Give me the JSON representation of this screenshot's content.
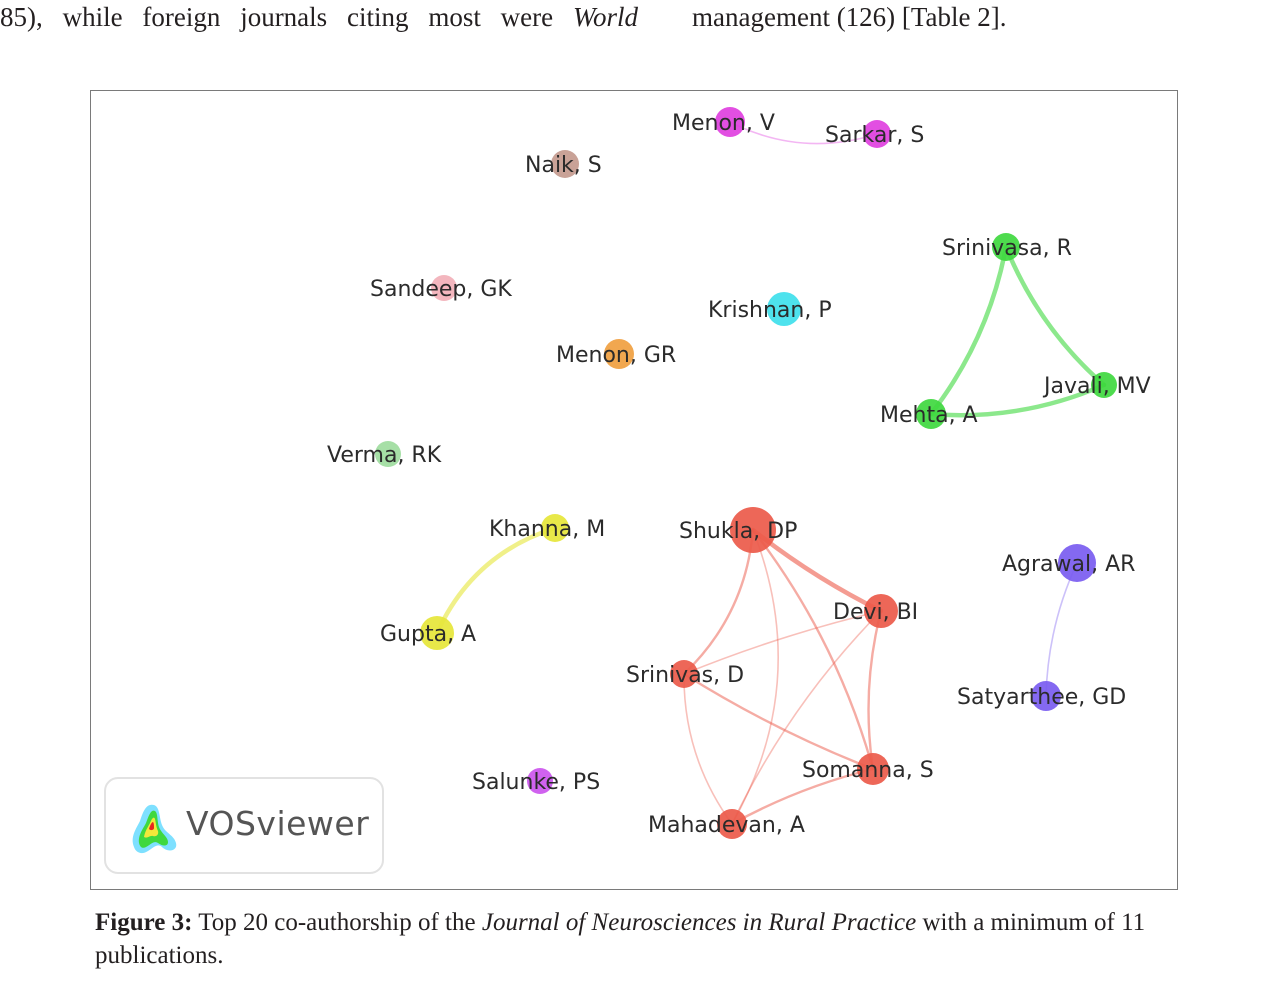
{
  "prose": {
    "left_line": "85), while foreign journals citing most were",
    "left_italic": "World",
    "right_line": "management (126) [Table 2]."
  },
  "figure": {
    "watermark": "VOSviewer",
    "caption": {
      "label": "Figure 3:",
      "text_before": " Top 20 co-authorship of the ",
      "journal": "Journal of Neurosciences in Rural Practice",
      "text_after": " with a minimum of 11 publications."
    }
  },
  "network": {
    "colors": {
      "magenta": "#e040e0",
      "brown": "#c49a8e",
      "green": "#3fd83f",
      "pink": "#f2b0b8",
      "cyan": "#3fe0ec",
      "orange": "#f0a040",
      "lightgreen": "#9edc9e",
      "yellow": "#e6e63a",
      "red": "#ec5a4a",
      "blue": "#7a5cf0",
      "violet": "#cc55ee"
    },
    "nodes": [
      {
        "id": "menon-v",
        "label": "Menon, V",
        "color": "magenta"
      },
      {
        "id": "sarkar-s",
        "label": "Sarkar, S",
        "color": "magenta"
      },
      {
        "id": "naik-s",
        "label": "Naik, S",
        "color": "brown"
      },
      {
        "id": "srinivasa-r",
        "label": "Srinivasa, R",
        "color": "green"
      },
      {
        "id": "sandeep-gk",
        "label": "Sandeep, GK",
        "color": "pink"
      },
      {
        "id": "krishnan-p",
        "label": "Krishnan, P",
        "color": "cyan"
      },
      {
        "id": "menon-gr",
        "label": "Menon, GR",
        "color": "orange"
      },
      {
        "id": "javali-mv",
        "label": "Javali, MV",
        "color": "green"
      },
      {
        "id": "mehta-a",
        "label": "Mehta, A",
        "color": "green"
      },
      {
        "id": "verma-rk",
        "label": "Verma, RK",
        "color": "lightgreen"
      },
      {
        "id": "khanna-m",
        "label": "Khanna, M",
        "color": "yellow"
      },
      {
        "id": "shukla-dp",
        "label": "Shukla, DP",
        "color": "red"
      },
      {
        "id": "agrawal-ar",
        "label": "Agrawal, AR",
        "color": "blue"
      },
      {
        "id": "devi-bi",
        "label": "Devi, BI",
        "color": "red"
      },
      {
        "id": "gupta-a",
        "label": "Gupta, A",
        "color": "yellow"
      },
      {
        "id": "srinivas-d",
        "label": "Srinivas, D",
        "color": "red"
      },
      {
        "id": "satyarthee-gd",
        "label": "Satyarthee, GD",
        "color": "blue"
      },
      {
        "id": "somanna-s",
        "label": "Somanna, S",
        "color": "red"
      },
      {
        "id": "salunke-ps",
        "label": "Salunke, PS",
        "color": "violet"
      },
      {
        "id": "mahadevan-a",
        "label": "Mahadevan, A",
        "color": "red"
      }
    ],
    "edges": [
      {
        "from": "menon-v",
        "to": "sarkar-s",
        "strength": "weak"
      },
      {
        "from": "srinivasa-r",
        "to": "javali-mv",
        "strength": "strong"
      },
      {
        "from": "srinivasa-r",
        "to": "mehta-a",
        "strength": "strong"
      },
      {
        "from": "mehta-a",
        "to": "javali-mv",
        "strength": "strong"
      },
      {
        "from": "khanna-m",
        "to": "gupta-a",
        "strength": "strong"
      },
      {
        "from": "agrawal-ar",
        "to": "satyarthee-gd",
        "strength": "weak"
      },
      {
        "from": "shukla-dp",
        "to": "devi-bi",
        "strength": "strong"
      },
      {
        "from": "shukla-dp",
        "to": "srinivas-d",
        "strength": "medium"
      },
      {
        "from": "shukla-dp",
        "to": "somanna-s",
        "strength": "medium"
      },
      {
        "from": "shukla-dp",
        "to": "mahadevan-a",
        "strength": "weak"
      },
      {
        "from": "devi-bi",
        "to": "srinivas-d",
        "strength": "weak"
      },
      {
        "from": "devi-bi",
        "to": "somanna-s",
        "strength": "medium"
      },
      {
        "from": "devi-bi",
        "to": "mahadevan-a",
        "strength": "weak"
      },
      {
        "from": "srinivas-d",
        "to": "somanna-s",
        "strength": "medium"
      },
      {
        "from": "srinivas-d",
        "to": "mahadevan-a",
        "strength": "weak"
      },
      {
        "from": "somanna-s",
        "to": "mahadevan-a",
        "strength": "medium"
      }
    ]
  }
}
